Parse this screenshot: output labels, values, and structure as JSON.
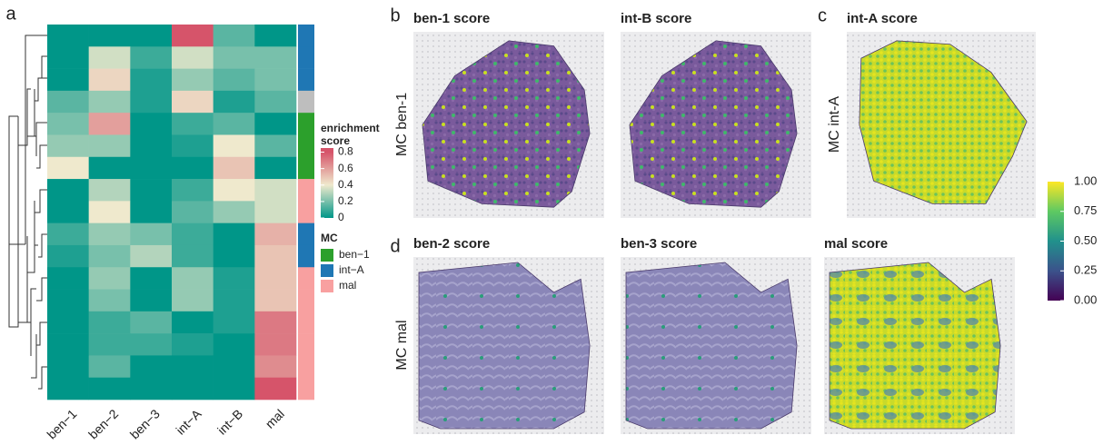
{
  "panel_labels": [
    "a",
    "b",
    "c",
    "d"
  ],
  "chart_data": {
    "type": "heatmap",
    "categories": [
      "ben−1",
      "ben−2",
      "ben−3",
      "int−A",
      "int−B",
      "mal"
    ],
    "values": [
      [
        0,
        0,
        0,
        0.8,
        0.15,
        0
      ],
      [
        0,
        0.35,
        0.1,
        0.35,
        0.2,
        0.2
      ],
      [
        0,
        0.45,
        0.05,
        0.25,
        0.15,
        0.2
      ],
      [
        0.15,
        0.25,
        0.05,
        0.45,
        0.05,
        0.15
      ],
      [
        0.2,
        0.6,
        0,
        0.1,
        0.15,
        0
      ],
      [
        0.25,
        0.25,
        0,
        0.05,
        0.4,
        0.15
      ],
      [
        0.4,
        0,
        0,
        0,
        0.5,
        0
      ],
      [
        0,
        0.3,
        0,
        0.1,
        0.4,
        0.35
      ],
      [
        0,
        0.4,
        0,
        0.15,
        0.25,
        0.35
      ],
      [
        0.1,
        0.25,
        0.2,
        0.1,
        0,
        0.55
      ],
      [
        0.05,
        0.2,
        0.3,
        0.1,
        0,
        0.5
      ],
      [
        0,
        0.25,
        0,
        0.25,
        0.05,
        0.5
      ],
      [
        0,
        0.2,
        0,
        0.25,
        0.05,
        0.5
      ],
      [
        0,
        0.1,
        0.15,
        0,
        0.05,
        0.7
      ],
      [
        0,
        0.1,
        0.1,
        0.05,
        0,
        0.7
      ],
      [
        0,
        0.15,
        0,
        0,
        0,
        0.65
      ],
      [
        0,
        0,
        0,
        0,
        0,
        0.85
      ]
    ],
    "row_groups": [
      "int−A",
      "int−A",
      "int−A",
      null,
      "ben−1",
      "ben−1",
      "ben−1",
      "mal",
      "mal",
      "int−A",
      "int−A",
      "mal",
      "mal",
      "mal",
      "mal",
      "mal",
      "mal"
    ],
    "na_color": "#bebebe",
    "colors": [
      "#009688",
      "#efe9cd",
      "#d6546a"
    ],
    "color_stops": [
      0,
      0.4,
      0.8
    ],
    "zlim": [
      0,
      0.85
    ],
    "zticks": [
      0,
      0.2,
      0.4,
      0.6,
      0.8
    ],
    "legend_title": [
      "enrichment",
      "score"
    ],
    "group_legend": {
      "title": "MC",
      "names": [
        "ben−1",
        "int−A",
        "mal"
      ],
      "colors": [
        "#2ca02c",
        "#1f77b4",
        "#f8a0a0"
      ]
    }
  },
  "spatial_panels": [
    {
      "title": "ben-1 score"
    },
    {
      "title": "int-B score"
    },
    {
      "title": "int-A score"
    },
    {
      "title": "ben-2 score"
    },
    {
      "title": "ben-3 score"
    },
    {
      "title": "mal score"
    }
  ],
  "row_labels": [
    "MC ben-1",
    "MC int-A",
    "MC mal"
  ],
  "score_colorbar": {
    "colors": [
      "#440154",
      "#3b528b",
      "#21918c",
      "#5ec962",
      "#fde725"
    ],
    "lim": [
      0,
      1
    ],
    "ticks": [
      {
        "value": 1,
        "label": "1.00"
      },
      {
        "value": 0.75,
        "label": "0.75"
      },
      {
        "value": 0.5,
        "label": "0.50"
      },
      {
        "value": 0.25,
        "label": "0.25"
      },
      {
        "value": 0,
        "label": "0.00"
      }
    ]
  }
}
